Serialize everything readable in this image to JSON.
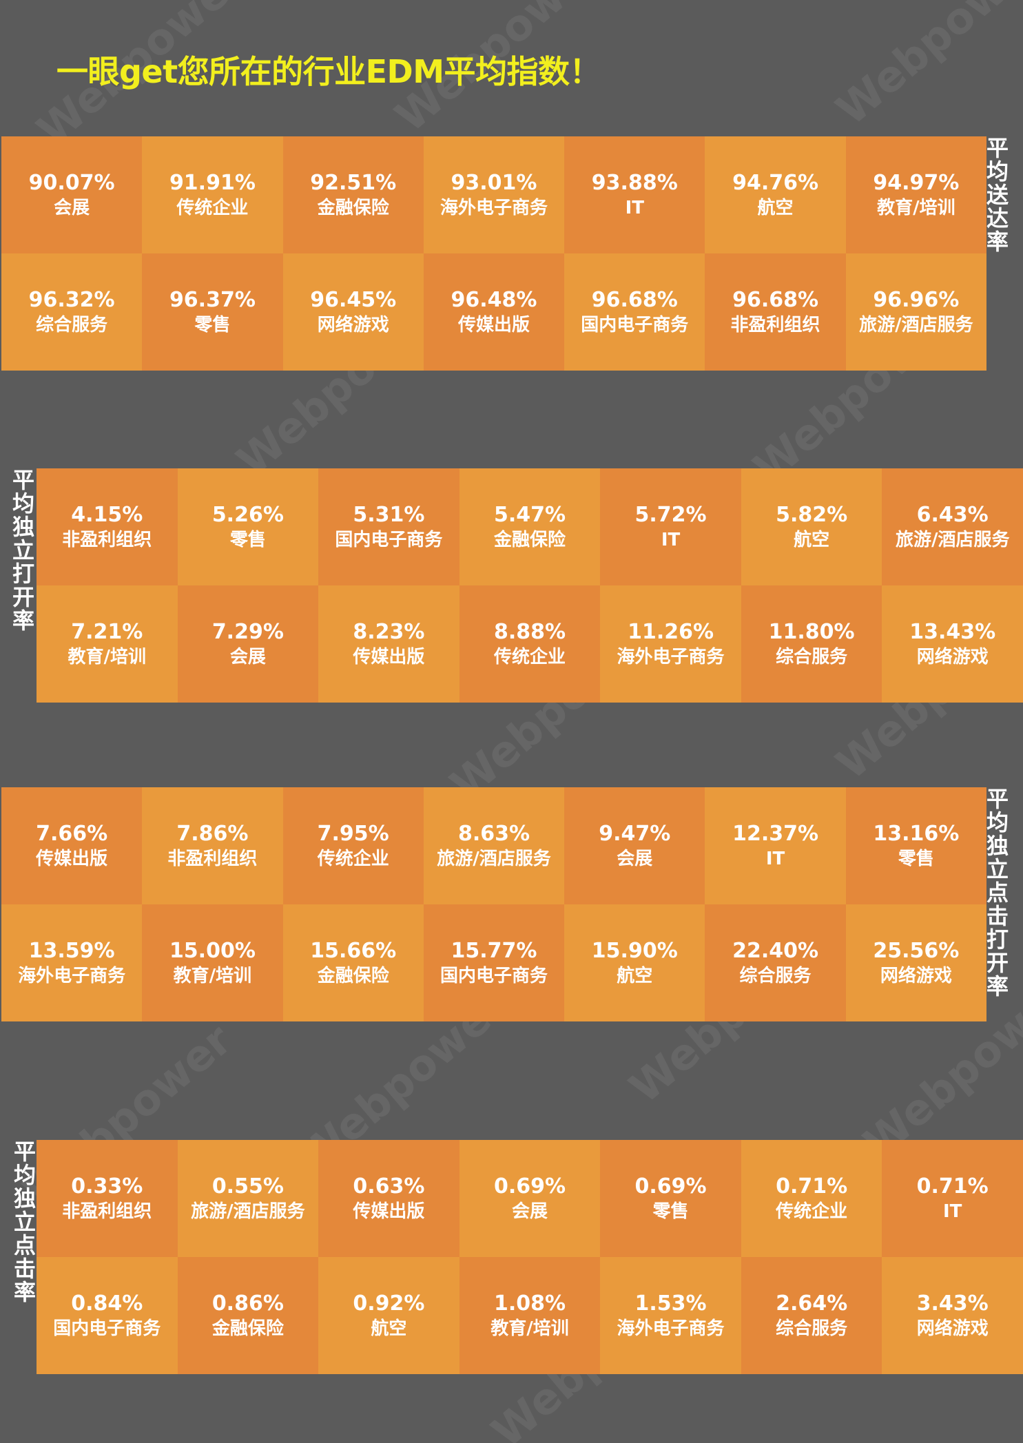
{
  "title": "一眼get您所在的行业EDM平均指数！",
  "watermark": "Webpower",
  "colors": {
    "background": "#5b5b5b",
    "cell_dark": "#e4883a",
    "cell_light": "#e99a3c",
    "title": "#f2ef1e"
  },
  "chart_data": [
    {
      "type": "table",
      "title": "平均送达率",
      "cells": [
        {
          "value": "90.07%",
          "label": "会展"
        },
        {
          "value": "91.91%",
          "label": "传统企业"
        },
        {
          "value": "92.51%",
          "label": "金融保险"
        },
        {
          "value": "93.01%",
          "label": "海外电子商务"
        },
        {
          "value": "93.88%",
          "label": "IT"
        },
        {
          "value": "94.76%",
          "label": "航空"
        },
        {
          "value": "94.97%",
          "label": "教育/培训"
        },
        {
          "value": "96.32%",
          "label": "综合服务"
        },
        {
          "value": "96.37%",
          "label": "零售"
        },
        {
          "value": "96.45%",
          "label": "网络游戏"
        },
        {
          "value": "96.48%",
          "label": "传媒出版"
        },
        {
          "value": "96.68%",
          "label": "国内电子商务"
        },
        {
          "value": "96.68%",
          "label": "非盈利组织"
        },
        {
          "value": "96.96%",
          "label": "旅游/酒店服务"
        }
      ]
    },
    {
      "type": "table",
      "title": "平均独立打开率",
      "cells": [
        {
          "value": "4.15%",
          "label": "非盈利组织"
        },
        {
          "value": "5.26%",
          "label": "零售"
        },
        {
          "value": "5.31%",
          "label": "国内电子商务"
        },
        {
          "value": "5.47%",
          "label": "金融保险"
        },
        {
          "value": "5.72%",
          "label": "IT"
        },
        {
          "value": "5.82%",
          "label": "航空"
        },
        {
          "value": "6.43%",
          "label": "旅游/酒店服务"
        },
        {
          "value": "7.21%",
          "label": "教育/培训"
        },
        {
          "value": "7.29%",
          "label": "会展"
        },
        {
          "value": "8.23%",
          "label": "传媒出版"
        },
        {
          "value": "8.88%",
          "label": "传统企业"
        },
        {
          "value": "11.26%",
          "label": "海外电子商务"
        },
        {
          "value": "11.80%",
          "label": "综合服务"
        },
        {
          "value": "13.43%",
          "label": "网络游戏"
        }
      ]
    },
    {
      "type": "table",
      "title": "平均独立点击打开率",
      "cells": [
        {
          "value": "7.66%",
          "label": "传媒出版"
        },
        {
          "value": "7.86%",
          "label": "非盈利组织"
        },
        {
          "value": "7.95%",
          "label": "传统企业"
        },
        {
          "value": "8.63%",
          "label": "旅游/酒店服务"
        },
        {
          "value": "9.47%",
          "label": "会展"
        },
        {
          "value": "12.37%",
          "label": "IT"
        },
        {
          "value": "13.16%",
          "label": "零售"
        },
        {
          "value": "13.59%",
          "label": "海外电子商务"
        },
        {
          "value": "15.00%",
          "label": "教育/培训"
        },
        {
          "value": "15.66%",
          "label": "金融保险"
        },
        {
          "value": "15.77%",
          "label": "国内电子商务"
        },
        {
          "value": "15.90%",
          "label": "航空"
        },
        {
          "value": "22.40%",
          "label": "综合服务"
        },
        {
          "value": "25.56%",
          "label": "网络游戏"
        }
      ]
    },
    {
      "type": "table",
      "title": "平均独立点击率",
      "cells": [
        {
          "value": "0.33%",
          "label": "非盈利组织"
        },
        {
          "value": "0.55%",
          "label": "旅游/酒店服务"
        },
        {
          "value": "0.63%",
          "label": "传媒出版"
        },
        {
          "value": "0.69%",
          "label": "会展"
        },
        {
          "value": "0.69%",
          "label": "零售"
        },
        {
          "value": "0.71%",
          "label": "传统企业"
        },
        {
          "value": "0.71%",
          "label": "IT"
        },
        {
          "value": "0.84%",
          "label": "国内电子商务"
        },
        {
          "value": "0.86%",
          "label": "金融保险"
        },
        {
          "value": "0.92%",
          "label": "航空"
        },
        {
          "value": "1.08%",
          "label": "教育/培训"
        },
        {
          "value": "1.53%",
          "label": "海外电子商务"
        },
        {
          "value": "2.64%",
          "label": "综合服务"
        },
        {
          "value": "3.43%",
          "label": "网络游戏"
        }
      ]
    }
  ]
}
